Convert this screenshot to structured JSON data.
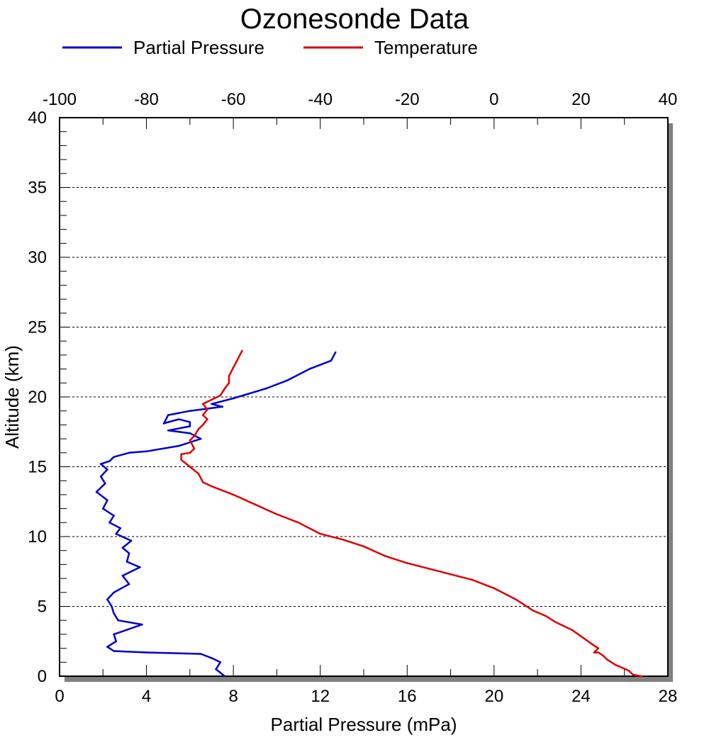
{
  "chart_data": {
    "type": "line",
    "title": "Ozonesonde Data",
    "xlabel": "Partial Pressure (mPa)",
    "ylabel": "Altitude (km)",
    "x_ticks": [
      "0",
      "4",
      "8",
      "12",
      "16",
      "20",
      "24",
      "28"
    ],
    "x2_ticks": [
      "-100",
      "-80",
      "-60",
      "-40",
      "-20",
      "0",
      "20",
      "40"
    ],
    "y_ticks": [
      "0",
      "5",
      "10",
      "15",
      "20",
      "25",
      "30",
      "35",
      "40"
    ],
    "xlim": [
      0,
      28
    ],
    "x2lim": [
      -100,
      40
    ],
    "ylim": [
      0,
      40
    ],
    "grid": "horizontal dotted",
    "legend_position": "top",
    "series": [
      {
        "name": "Partial Pressure",
        "axis": "bottom",
        "color": "#0000cc",
        "x": [
          7.6,
          7.2,
          7.4,
          7.0,
          6.5,
          4.0,
          2.5,
          2.2,
          2.6,
          2.5,
          3.8,
          2.7,
          2.5,
          2.4,
          2.2,
          2.5,
          3.2,
          2.9,
          3.7,
          3.1,
          3.2,
          2.9,
          3.3,
          2.6,
          2.8,
          2.3,
          2.5,
          2.0,
          2.2,
          1.7,
          2.1,
          1.9,
          2.2,
          1.9,
          2.3,
          2.5,
          3.2,
          4.0,
          5.5,
          6.5,
          6.0,
          5.0,
          6.0,
          6.0,
          5.5,
          5.0,
          4.8,
          5.0,
          6.0,
          7.5,
          7.0,
          8.0,
          9.5,
          10.5,
          11.5,
          12.5,
          12.7
        ],
        "y": [
          0.0,
          0.5,
          1.0,
          1.3,
          1.6,
          1.7,
          1.8,
          2.1,
          2.5,
          3.0,
          3.7,
          4.0,
          4.5,
          5.0,
          5.5,
          6.0,
          6.6,
          7.2,
          7.8,
          8.2,
          8.8,
          9.2,
          9.7,
          10.2,
          10.6,
          11.0,
          11.5,
          12.0,
          12.6,
          13.2,
          13.8,
          14.3,
          14.8,
          15.2,
          15.4,
          15.7,
          16.0,
          16.1,
          16.5,
          17.0,
          17.4,
          17.6,
          17.9,
          18.2,
          18.4,
          18.2,
          18.1,
          18.7,
          19.0,
          19.3,
          19.5,
          19.9,
          20.6,
          21.2,
          22.0,
          22.6,
          23.2
        ]
      },
      {
        "name": "Temperature",
        "axis": "top",
        "color": "#dd0000",
        "x": [
          34.0,
          32.0,
          31.0,
          28.0,
          26.0,
          25.0,
          24.0,
          23.0,
          24.0,
          23.0,
          18.0,
          14.0,
          12.0,
          9.0,
          5.0,
          0.0,
          -5.0,
          -10.0,
          -20.0,
          -25.0,
          -30.0,
          -35.0,
          -40.0,
          -45.0,
          -50.0,
          -55.0,
          -60.0,
          -65.0,
          -67.0,
          -68.0,
          -70.0,
          -72.0,
          -72.0,
          -70.0,
          -69.0,
          -70.0,
          -69.0,
          -68.0,
          -67.0,
          -66.0,
          -67.0,
          -66.0,
          -67.0,
          -65.0,
          -63.0,
          -62.0,
          -61.0,
          -61.0,
          -60.0,
          -59.0,
          -58.0
        ],
        "y": [
          0.0,
          0.1,
          0.4,
          0.8,
          1.2,
          1.5,
          1.7,
          1.7,
          2.0,
          2.2,
          3.3,
          3.9,
          4.3,
          4.7,
          5.5,
          6.3,
          6.9,
          7.3,
          8.1,
          8.6,
          9.3,
          9.8,
          10.2,
          11.0,
          11.6,
          12.3,
          13.0,
          13.6,
          13.9,
          14.5,
          15.0,
          15.5,
          15.9,
          16.0,
          16.3,
          16.9,
          17.2,
          17.7,
          18.0,
          18.4,
          18.7,
          19.1,
          19.5,
          19.8,
          20.1,
          20.6,
          21.0,
          21.5,
          22.1,
          22.7,
          23.3
        ]
      }
    ]
  }
}
